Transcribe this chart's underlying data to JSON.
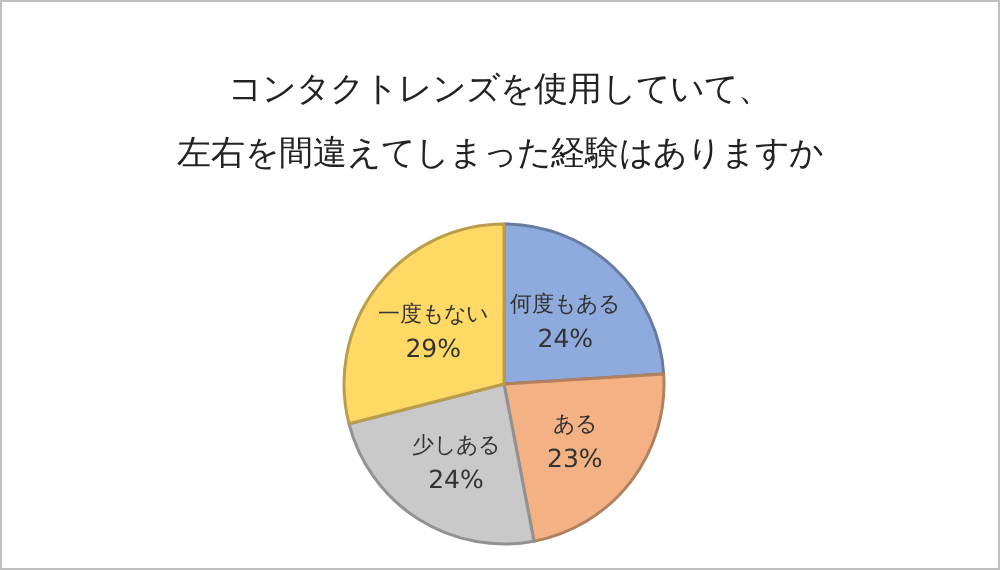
{
  "chart_data": {
    "type": "pie",
    "title": "コンタクトレンズを使用していて、",
    "subtitle": "左右を間違えてしまった経験はありますか",
    "categories": [
      "何度もある",
      "ある",
      "少しある",
      "一度もない"
    ],
    "values": [
      24,
      23,
      24,
      29
    ],
    "value_labels": [
      "24%",
      "23%",
      "24%",
      "29%"
    ],
    "colors": [
      "#8faadc",
      "#f4b183",
      "#c9c9c9",
      "#ffd966"
    ]
  }
}
